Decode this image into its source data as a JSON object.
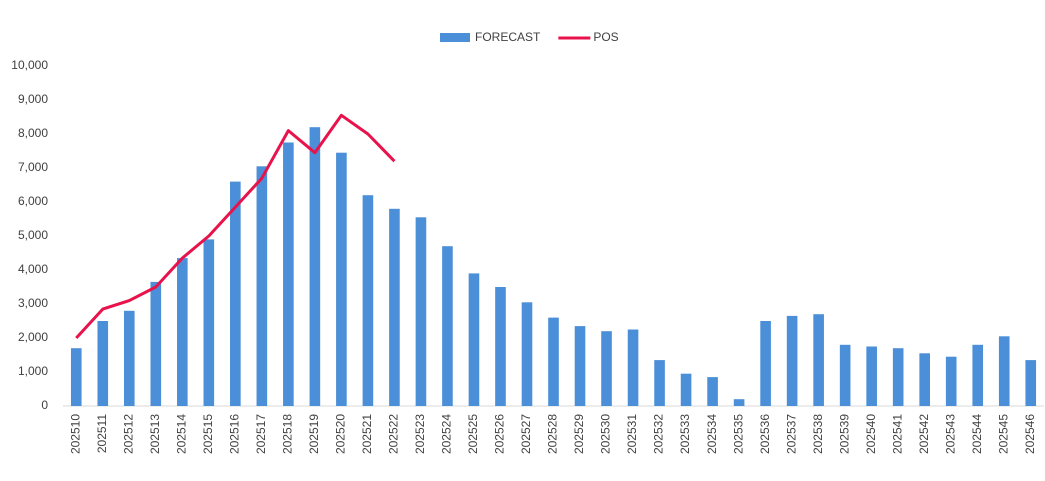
{
  "chart_data": {
    "type": "bar+line",
    "categories": [
      "202510",
      "202511",
      "202512",
      "202513",
      "202514",
      "202515",
      "202516",
      "202517",
      "202518",
      "202519",
      "202520",
      "202521",
      "202522",
      "202523",
      "202524",
      "202525",
      "202526",
      "202527",
      "202528",
      "202529",
      "202530",
      "202531",
      "202532",
      "202533",
      "202534",
      "202535",
      "202536",
      "202537",
      "202538",
      "202539",
      "202540",
      "202541",
      "202542",
      "202543",
      "202544",
      "202545",
      "202546"
    ],
    "series": [
      {
        "name": "FORECAST",
        "type": "bar",
        "color": "#4a8fd8",
        "values": [
          1700,
          2500,
          2800,
          3650,
          4350,
          4900,
          6600,
          7050,
          7750,
          8200,
          7450,
          6200,
          5800,
          5550,
          4700,
          3900,
          3500,
          3050,
          2600,
          2350,
          2200,
          2250,
          1350,
          950,
          850,
          200,
          2500,
          2650,
          2700,
          1800,
          1750,
          1700,
          1550,
          1450,
          1800,
          2050,
          1350
        ]
      },
      {
        "name": "POS",
        "type": "line",
        "color": "#e8134b",
        "values": [
          2000,
          2850,
          3100,
          3500,
          4350,
          5000,
          5850,
          6700,
          8100,
          7450,
          8550,
          8000,
          7200,
          null,
          null,
          null,
          null,
          null,
          null,
          null,
          null,
          null,
          null,
          null,
          null,
          null,
          null,
          null,
          null,
          null,
          null,
          null,
          null,
          null,
          null,
          null,
          null
        ]
      }
    ],
    "ylim": [
      0,
      10000
    ],
    "yticks": [
      0,
      {
        "value": 1000,
        "label": "1,000"
      },
      {
        "value": 2000,
        "label": "2,000"
      },
      {
        "value": 3000,
        "label": "3,000"
      },
      {
        "value": 4000,
        "label": "4,000"
      },
      {
        "value": 5000,
        "label": "5,000"
      },
      {
        "value": 6000,
        "label": "6,000"
      },
      {
        "value": 7000,
        "label": "7,000"
      },
      {
        "value": 8000,
        "label": "8,000"
      },
      {
        "value": 9000,
        "label": "9,000"
      },
      {
        "value": 10000,
        "label": "10,000"
      }
    ],
    "grid": false,
    "legend": "top"
  }
}
